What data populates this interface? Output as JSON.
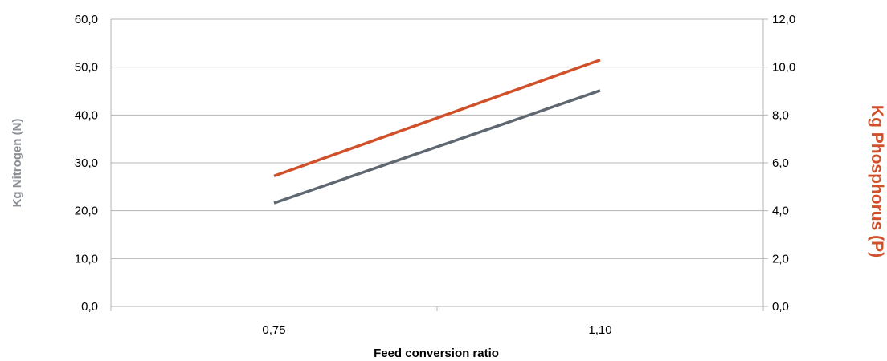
{
  "chart_data": {
    "type": "line",
    "categories": [
      "0,75",
      "1,10"
    ],
    "x": [
      0.75,
      1.1
    ],
    "xlabel": "Feed conversion ratio",
    "ylabel": "Kg Nitrogen (N)",
    "y2label": "Kg Phosphorus (P)",
    "ylim": [
      0,
      60
    ],
    "y2lim": [
      0,
      12
    ],
    "yticks": [
      "0,0",
      "10,0",
      "20,0",
      "30,0",
      "40,0",
      "50,0",
      "60,0"
    ],
    "y2ticks": [
      "0,0",
      "2,0",
      "4,0",
      "6,0",
      "8,0",
      "10,0",
      "12,0"
    ],
    "grid": true,
    "legend": "none",
    "series": [
      {
        "values": [
          21.6,
          45.1
        ],
        "axis": "left",
        "color": "#5f6771"
      },
      {
        "values": [
          5.45,
          10.3
        ],
        "axis": "right",
        "color": "#d0502a"
      }
    ],
    "colors": {
      "left_axis_title": "#8c9096",
      "right_axis_title": "#d0502a",
      "grid": "#b4b4b4"
    }
  }
}
